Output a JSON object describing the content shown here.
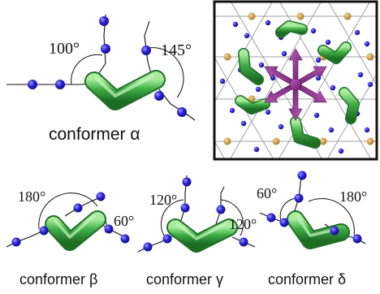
{
  "conformers": [
    {
      "id": "alpha",
      "caption": "conformer α",
      "angles": [
        "100°",
        "145°"
      ]
    },
    {
      "id": "beta",
      "caption": "conformer β",
      "angles": [
        "180°",
        "60°"
      ]
    },
    {
      "id": "gamma",
      "caption": "conformer γ",
      "angles": [
        "120°",
        "120°"
      ]
    },
    {
      "id": "delta",
      "caption": "conformer δ",
      "angles": [
        "60°",
        "180°"
      ]
    }
  ],
  "colors": {
    "v_shape": "#2f9a3a",
    "v_highlight": "#9be08f",
    "atom": "#2a22d8",
    "lattice_node": "#c8963a",
    "star": "#8a2a8a",
    "grid": "#9a9a9a",
    "frame": "#111111"
  }
}
